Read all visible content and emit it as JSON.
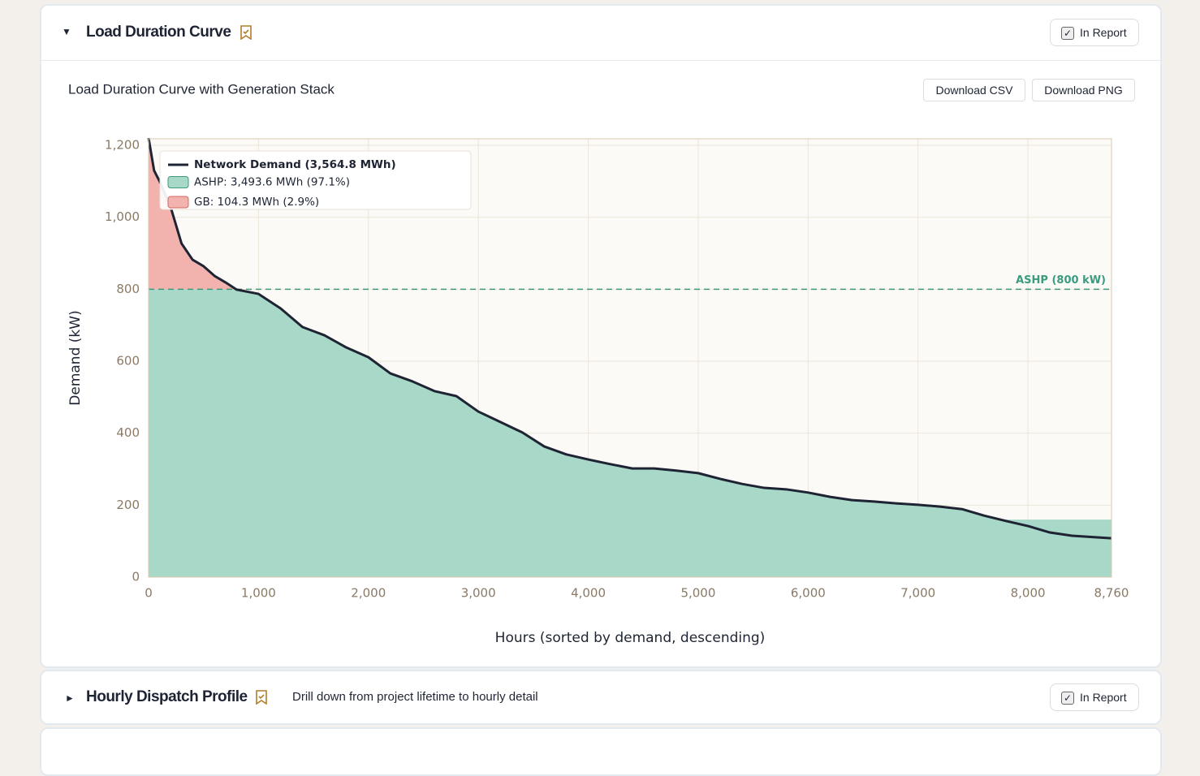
{
  "panels": [
    {
      "title": "Load Duration Curve",
      "report_label": "In Report",
      "buttons": [
        "Download CSV",
        "Download PNG"
      ]
    },
    {
      "title": "Hourly Dispatch Profile",
      "description": "Drill down from project lifetime to hourly detail",
      "report_label": "In Report"
    }
  ],
  "chart_data": {
    "type": "area",
    "stacked": true,
    "title": "Load Duration Curve with Generation Stack",
    "x_label": "Hours (sorted by demand, descending)",
    "y_label": "Demand (kW)",
    "x": [
      0,
      50,
      100,
      200,
      300,
      400,
      500,
      600,
      700,
      800,
      1000,
      1200,
      1400,
      1600,
      1800,
      2000,
      2200,
      2400,
      2600,
      2800,
      3000,
      3200,
      3400,
      3600,
      3800,
      4000,
      4200,
      4400,
      4600,
      4800,
      5000,
      5200,
      5400,
      5600,
      5800,
      6000,
      6200,
      6400,
      6600,
      6800,
      7000,
      7200,
      7400,
      7600,
      7800,
      8000,
      8200,
      8400,
      8600,
      8760
    ],
    "series": [
      {
        "name": "Network Demand (3,564.8 MWh)",
        "kind": "line",
        "color": "#1e2433",
        "values": [
          1220,
          1130,
          1100,
          1029,
          927,
          882,
          864,
          837,
          819,
          799,
          787,
          747,
          695,
          672,
          638,
          611,
          566,
          544,
          517,
          503,
          460,
          431,
          402,
          363,
          341,
          327,
          314,
          302,
          302,
          296,
          289,
          273,
          259,
          248,
          244,
          235,
          223,
          214,
          210,
          205,
          201,
          196,
          189,
          171,
          156,
          142,
          124,
          115,
          111,
          108
        ]
      },
      {
        "name": "ASHP: 3,493.6 MWh (97.1%)",
        "kind": "area",
        "color": "#a8d8c8",
        "values": [
          800,
          800,
          800,
          800,
          800,
          800,
          800,
          800,
          800,
          799,
          787,
          747,
          695,
          672,
          638,
          611,
          566,
          544,
          517,
          503,
          460,
          431,
          402,
          363,
          341,
          327,
          314,
          302,
          302,
          296,
          289,
          273,
          259,
          248,
          244,
          235,
          223,
          214,
          210,
          205,
          201,
          196,
          189,
          171,
          160,
          160,
          160,
          160,
          160,
          160
        ]
      },
      {
        "name": "GB: 104.3 MWh (2.9%)",
        "kind": "area",
        "color": "#f2b3ae",
        "values": [
          420,
          330,
          300,
          229,
          127,
          82,
          64,
          37,
          19,
          0,
          0,
          0,
          0,
          0,
          0,
          0,
          0,
          0,
          0,
          0,
          0,
          0,
          0,
          0,
          0,
          0,
          0,
          0,
          0,
          0,
          0,
          0,
          0,
          0,
          0,
          0,
          0,
          0,
          0,
          0,
          0,
          0,
          0,
          0,
          0,
          0,
          0,
          0,
          0,
          0
        ]
      }
    ],
    "reference_line": {
      "value": 800,
      "label": "ASHP (800 kW)",
      "color": "#3a9b7f"
    },
    "xlim": [
      0,
      8760
    ],
    "xticks": [
      0,
      {
        "value": 1000,
        "label": "1,000"
      },
      {
        "value": 2000,
        "label": "2,000"
      },
      {
        "value": 3000,
        "label": "3,000"
      },
      {
        "value": 4000,
        "label": "4,000"
      },
      {
        "value": 5000,
        "label": "5,000"
      },
      {
        "value": 6000,
        "label": "6,000"
      },
      {
        "value": 7000,
        "label": "7,000"
      },
      {
        "value": 8000,
        "label": "8,000"
      },
      {
        "value": 8760,
        "label": "8,760"
      }
    ],
    "ylim": [
      0,
      1218
    ],
    "yticks": [
      0,
      200,
      400,
      600,
      800,
      {
        "value": 1000,
        "label": "1,000"
      },
      {
        "value": 1200,
        "label": "1,200"
      }
    ],
    "grid": true,
    "legend": "top-left"
  }
}
